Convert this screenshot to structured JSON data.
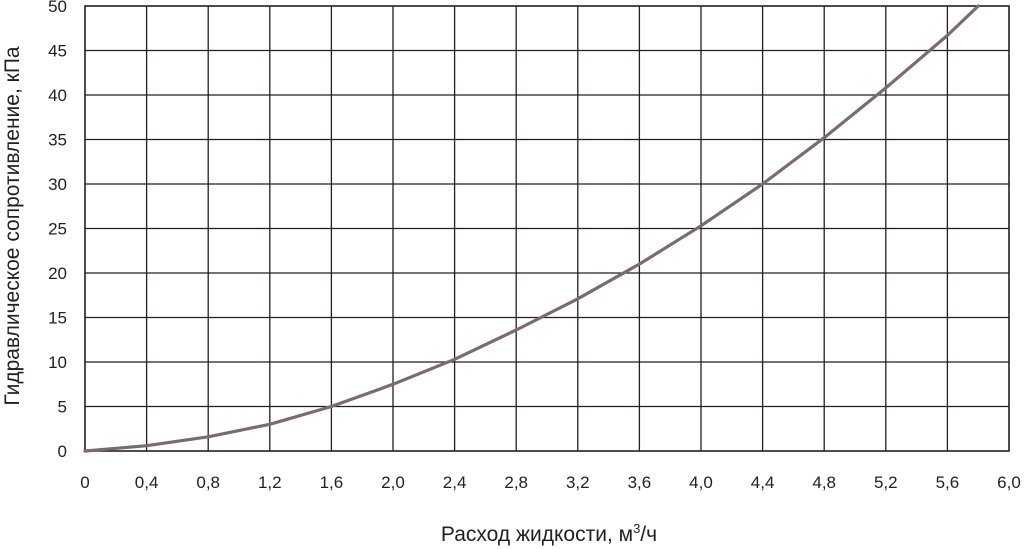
{
  "chart_data": {
    "type": "line",
    "title": "",
    "xlabel": "Расход жидкости, м³/ч",
    "xlabel_base": "Расход жидкости, м",
    "xlabel_sup": "3",
    "xlabel_tail": "/ч",
    "ylabel": "Гидравлическое сопротивление, кПа",
    "xlim": [
      0,
      6.0
    ],
    "ylim": [
      0,
      50
    ],
    "x_tick_labels": [
      "0",
      "0,4",
      "0,8",
      "1,2",
      "1,6",
      "2,0",
      "2,4",
      "2,8",
      "3,2",
      "3,6",
      "4,0",
      "4,4",
      "4,8",
      "5,2",
      "5,6",
      "6,0"
    ],
    "y_tick_labels": [
      "0",
      "5",
      "10",
      "15",
      "20",
      "25",
      "30",
      "35",
      "40",
      "45",
      "50"
    ],
    "grid": true,
    "series": [
      {
        "color": "#7b6a75",
        "x": [
          0,
          0.4,
          0.8,
          1.2,
          1.6,
          2.0,
          2.4,
          2.8,
          3.2,
          3.6,
          4.0,
          4.4,
          4.8,
          5.2,
          5.6,
          5.8
        ],
        "y": [
          0,
          0.6,
          1.6,
          3.0,
          5.0,
          7.5,
          10.3,
          13.6,
          17.1,
          21.0,
          25.3,
          30.0,
          35.2,
          40.8,
          46.7,
          50.0
        ]
      }
    ]
  }
}
